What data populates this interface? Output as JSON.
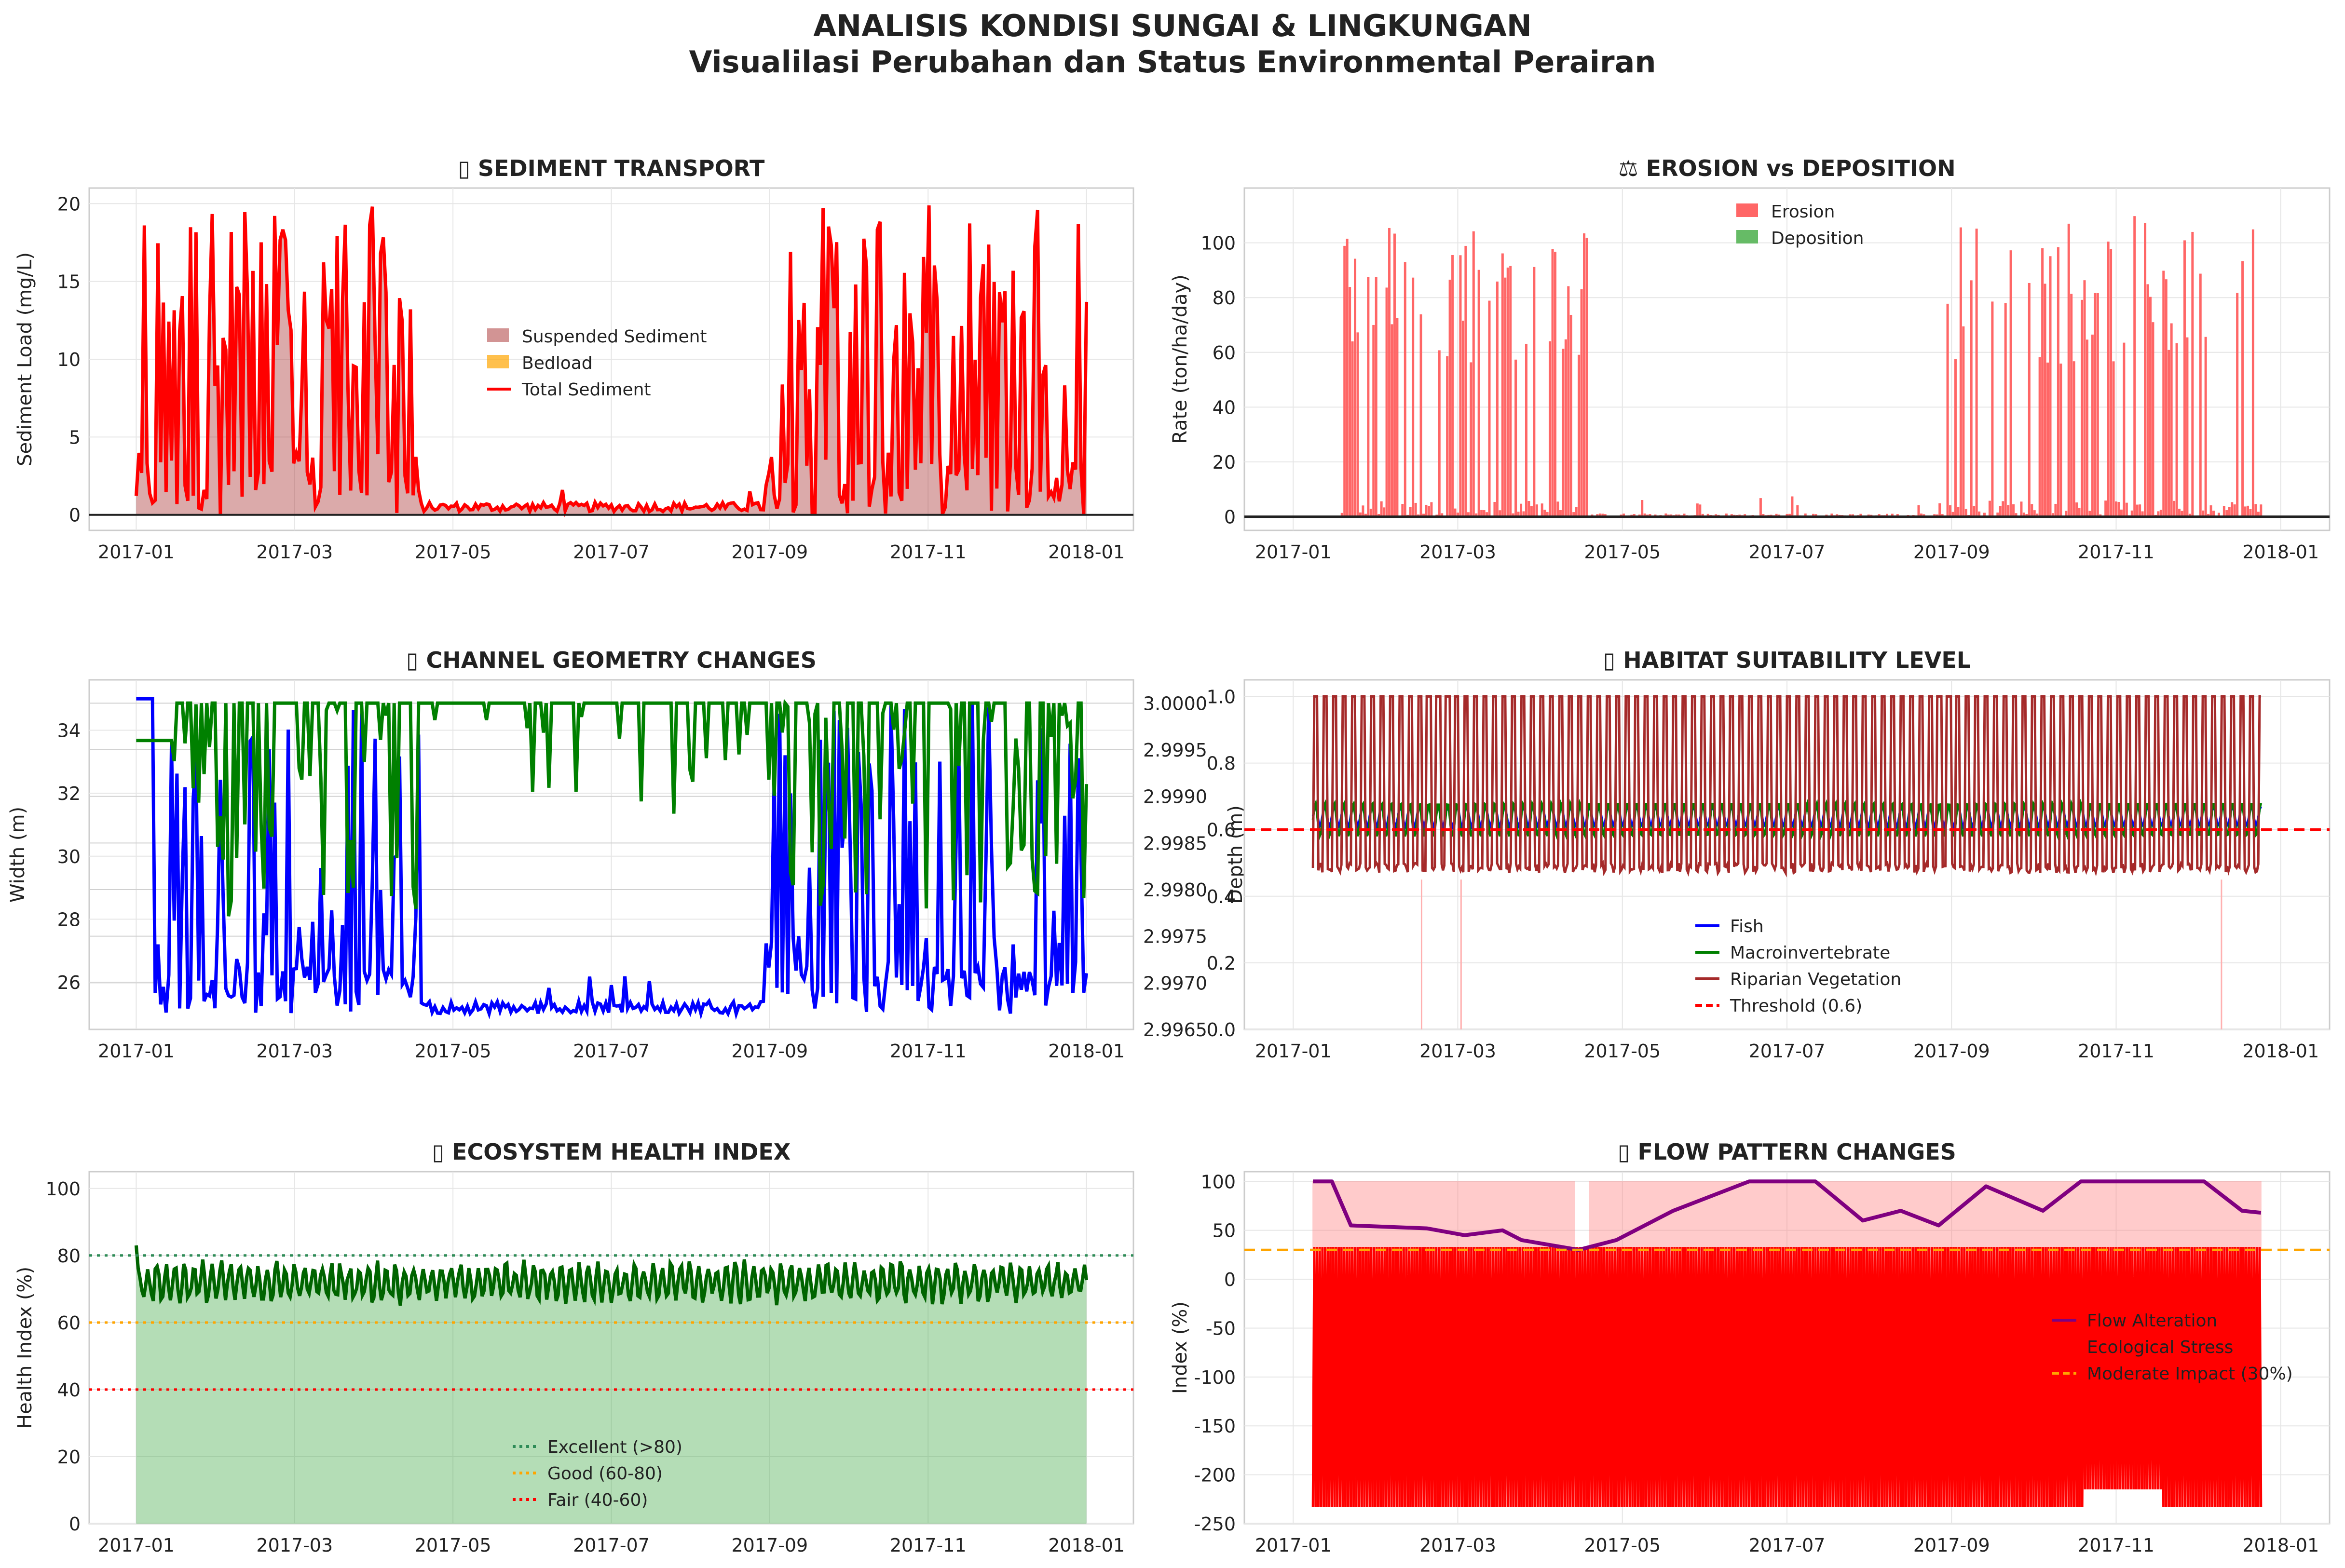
{
  "header": {
    "title": "ANALISIS KONDISI SUNGAI & LINGKUNGAN",
    "subtitle": "Visualilasi Perubahan dan Status Environmental Perairan"
  },
  "colors": {
    "red": "#ff0000",
    "blue": "#0000ff",
    "green": "#008000",
    "darkgreen": "#006400",
    "brown": "#a52a2a",
    "purple": "#800080",
    "orange": "#ffa500",
    "grid": "#e6e6e6"
  },
  "chart_data": [
    {
      "id": "sediment",
      "type": "area",
      "title": "▯ SEDIMENT TRANSPORT",
      "xlabel": "",
      "ylabel": "Sediment Load (mg/L)",
      "ylim": [
        -1,
        21
      ],
      "yticks": [
        0,
        5,
        10,
        15,
        20
      ],
      "xticks": [
        "2017-01",
        "2017-03",
        "2017-05",
        "2017-07",
        "2017-09",
        "2017-11",
        "2018-01"
      ],
      "legend": [
        "Suspended Sediment",
        "Bedload",
        "Total Sediment"
      ],
      "legend_position": "center",
      "series": [
        {
          "name": "Total Sediment",
          "color": "#ff0000",
          "pattern": "wet 0-0.30 & 0.66-1.0 spikes 0-20 mg/L; dry 0.30-0.66 near 0.5 mg/L"
        }
      ]
    },
    {
      "id": "erosion",
      "type": "bar",
      "title": "⚖ EROSION vs DEPOSITION",
      "ylabel": "Rate (ton/ha/day)",
      "ylim": [
        -5,
        120
      ],
      "yticks": [
        0,
        20,
        40,
        60,
        80,
        100
      ],
      "xticks": [
        "2017-01",
        "2017-03",
        "2017-05",
        "2017-07",
        "2017-09",
        "2017-11",
        "2018-01"
      ],
      "legend": [
        "Erosion",
        "Deposition"
      ],
      "legend_position": "top-center",
      "series": [
        {
          "name": "Erosion",
          "color": "#ff6666",
          "max": 110
        },
        {
          "name": "Deposition",
          "color": "#66bb66",
          "max": 0
        }
      ]
    },
    {
      "id": "channel",
      "type": "line",
      "title": "▯ CHANNEL GEOMETRY CHANGES",
      "ylabel": "Width (m)",
      "ylabel_right": "Depth (m)",
      "ylim": [
        24.5,
        35.6
      ],
      "yticks": [
        26,
        28,
        30,
        32,
        34
      ],
      "ylim_right": [
        2.9965,
        3.00025
      ],
      "yticks_right": [
        "2.9965",
        "2.9970",
        "2.9975",
        "2.9980",
        "2.9985",
        "2.9990",
        "2.9995",
        "3.0000"
      ],
      "xticks": [
        "2017-01",
        "2017-03",
        "2017-05",
        "2017-07",
        "2017-09",
        "2017-11",
        "2018-01"
      ],
      "series": [
        {
          "name": "Width",
          "color": "#0000ff"
        },
        {
          "name": "Depth",
          "color": "#008000"
        }
      ]
    },
    {
      "id": "habitat",
      "type": "line",
      "title": "▯ HABITAT SUITABILITY LEVEL",
      "ylim": [
        0,
        1.05
      ],
      "yticks": [
        "0.0",
        "0.2",
        "0.4",
        "0.6",
        "0.8",
        "1.0"
      ],
      "xticks": [
        "2017-01",
        "2017-03",
        "2017-05",
        "2017-07",
        "2017-09",
        "2017-11",
        "2018-01"
      ],
      "legend": [
        "Fish",
        "Macroinvertebrate",
        "Riparian Vegetation",
        "Threshold (0.6)"
      ],
      "legend_position": "lower-center",
      "threshold": 0.6,
      "series": [
        {
          "name": "Fish",
          "color": "#0000ff"
        },
        {
          "name": "Macroinvertebrate",
          "color": "#008000"
        },
        {
          "name": "Riparian Vegetation",
          "color": "#a52a2a"
        }
      ]
    },
    {
      "id": "health",
      "type": "area",
      "title": "▯ ECOSYSTEM HEALTH INDEX",
      "ylabel": "Health Index (%)",
      "ylim": [
        0,
        105
      ],
      "yticks": [
        0,
        20,
        40,
        60,
        80,
        100
      ],
      "xticks": [
        "2017-01",
        "2017-03",
        "2017-05",
        "2017-07",
        "2017-09",
        "2017-11",
        "2018-01"
      ],
      "legend": [
        "Excellent (>80)",
        "Good (60-80)",
        "Fair (40-60)"
      ],
      "legend_position": "lower-center",
      "thresholds": [
        {
          "value": 80,
          "color": "#2e8b57"
        },
        {
          "value": 60,
          "color": "#ffa500"
        },
        {
          "value": 40,
          "color": "#ff0000"
        }
      ],
      "series": [
        {
          "name": "Health Index",
          "color": "#006400",
          "mean": 72
        }
      ]
    },
    {
      "id": "flow",
      "type": "line",
      "title": "▯ FLOW PATTERN CHANGES",
      "ylabel": "Index (%)",
      "ylim": [
        -250,
        110
      ],
      "yticks": [
        -250,
        -200,
        -150,
        -100,
        -50,
        0,
        50,
        100
      ],
      "xticks": [
        "2017-01",
        "2017-03",
        "2017-05",
        "2017-07",
        "2017-09",
        "2017-11",
        "2018-01"
      ],
      "legend": [
        "Flow Alteration",
        "Ecological Stress",
        "Moderate Impact (30%)"
      ],
      "legend_position": "right",
      "threshold": 30,
      "series": [
        {
          "name": "Flow Alteration",
          "color": "#800080",
          "points": [
            [
              0.0,
              100
            ],
            [
              0.02,
              100
            ],
            [
              0.04,
              55
            ],
            [
              0.12,
              52
            ],
            [
              0.16,
              45
            ],
            [
              0.2,
              50
            ],
            [
              0.22,
              40
            ],
            [
              0.28,
              30
            ],
            [
              0.32,
              40
            ],
            [
              0.38,
              70
            ],
            [
              0.46,
              100
            ],
            [
              0.53,
              100
            ],
            [
              0.58,
              60
            ],
            [
              0.62,
              70
            ],
            [
              0.66,
              55
            ],
            [
              0.71,
              95
            ],
            [
              0.77,
              70
            ],
            [
              0.81,
              100
            ],
            [
              0.94,
              100
            ],
            [
              0.98,
              70
            ],
            [
              1.0,
              68
            ]
          ]
        },
        {
          "name": "Ecological Stress",
          "color": "#ff0000",
          "range": [
            -235,
            35
          ]
        }
      ]
    }
  ]
}
